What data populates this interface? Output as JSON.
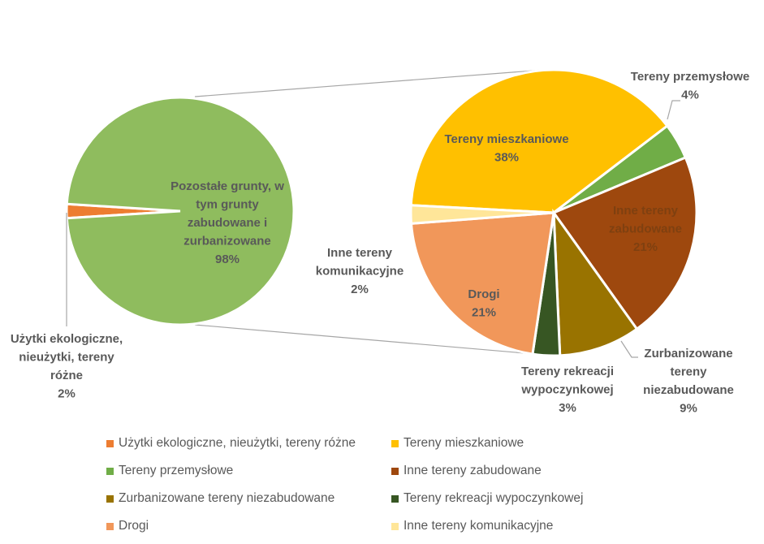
{
  "chart_data": {
    "type": "pie",
    "subtype": "pie-of-pie",
    "primary_pie": {
      "slices": [
        {
          "name": "Użytki ekologiczne, nieużytki, tereny różne",
          "label_lines": [
            "Użytki ekologiczne,",
            "nieużytki, tereny",
            "różne"
          ],
          "value": 2,
          "percent_label": "2%",
          "color": "#ED7D31"
        },
        {
          "name": "Pozostałe grunty, w tym grunty zabudowane i zurbanizowane",
          "label_lines": [
            "Pozostałe grunty, w",
            "tym grunty",
            "zabudowane i",
            "zurbanizowane"
          ],
          "value": 98,
          "percent_label": "98%",
          "color": "#8FBC5E"
        }
      ]
    },
    "secondary_pie": {
      "slices": [
        {
          "name": "Tereny mieszkaniowe",
          "label_lines": [
            "Tereny mieszkaniowe"
          ],
          "value": 38,
          "percent_label": "38%",
          "color": "#FFC000"
        },
        {
          "name": "Tereny przemysłowe",
          "label_lines": [
            "Tereny przemysłowe"
          ],
          "value": 4,
          "percent_label": "4%",
          "color": "#70AD47"
        },
        {
          "name": "Inne tereny zabudowane",
          "label_lines": [
            "Inne tereny",
            "zabudowane"
          ],
          "value": 21,
          "percent_label": "21%",
          "color": "#9E480E"
        },
        {
          "name": "Zurbanizowane tereny niezabudowane",
          "label_lines": [
            "Zurbanizowane",
            "tereny",
            "niezabudowane"
          ],
          "value": 9,
          "percent_label": "9%",
          "color": "#997300"
        },
        {
          "name": "Tereny rekreacji wypoczynkowej",
          "label_lines": [
            "Tereny rekreacji",
            "wypoczynkowej"
          ],
          "value": 3,
          "percent_label": "3%",
          "color": "#375623"
        },
        {
          "name": "Drogi",
          "label_lines": [
            "Drogi"
          ],
          "value": 21,
          "percent_label": "21%",
          "color": "#F1975A"
        },
        {
          "name": "Inne tereny komunikacyjne",
          "label_lines": [
            "Inne tereny",
            "komunikacyjne"
          ],
          "value": 2,
          "percent_label": "2%",
          "color": "#FFE699"
        }
      ]
    },
    "legend": {
      "position": "bottom",
      "items": [
        {
          "label": "Użytki ekologiczne, nieużytki, tereny różne",
          "color": "#ED7D31"
        },
        {
          "label": "Tereny mieszkaniowe",
          "color": "#FFC000"
        },
        {
          "label": "Tereny przemysłowe",
          "color": "#70AD47"
        },
        {
          "label": "Inne tereny zabudowane",
          "color": "#9E480E"
        },
        {
          "label": "Zurbanizowane tereny niezabudowane",
          "color": "#997300"
        },
        {
          "label": "Tereny rekreacji wypoczynkowej",
          "color": "#375623"
        },
        {
          "label": "Drogi",
          "color": "#F1975A"
        },
        {
          "label": "Inne tereny komunikacyjne",
          "color": "#FFE699"
        }
      ]
    }
  }
}
